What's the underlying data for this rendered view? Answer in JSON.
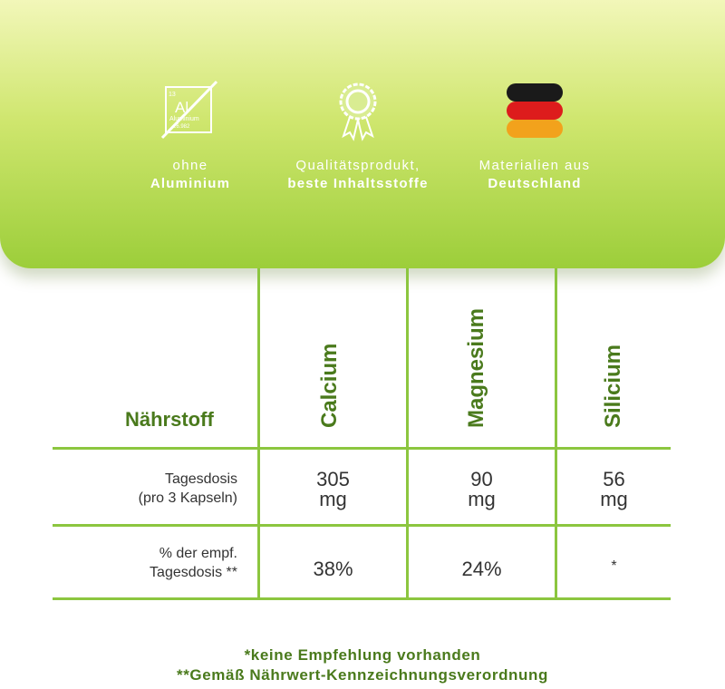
{
  "features": [
    {
      "icon": "aluminium-crossed-icon",
      "line1": "ohne",
      "line2": "Aluminium"
    },
    {
      "icon": "quality-rosette-icon",
      "line1": "Qualitätsprodukt,",
      "line2": "beste Inhaltsstoffe"
    },
    {
      "icon": "germany-flag-icon",
      "line1": "Materialien aus",
      "line2": "Deutschland"
    }
  ],
  "element_tile": {
    "number": "13",
    "symbol": "Al",
    "name": "Aluminium",
    "mass": "26.982"
  },
  "table": {
    "header": "Nährstoff",
    "columns": [
      "Calcium",
      "Magnesium",
      "Silicium"
    ],
    "rows": [
      {
        "label_1": "Tagesdosis",
        "label_2": "(pro 3 Kapseln)",
        "values": [
          [
            "305",
            "mg"
          ],
          [
            "90",
            "mg"
          ],
          [
            "56",
            "mg"
          ]
        ]
      },
      {
        "label_1": "% der empf.",
        "label_2": "Tagesdosis **",
        "values": [
          "38%",
          "24%",
          "*"
        ]
      }
    ]
  },
  "footnotes": [
    "*keine Empfehlung vorhanden",
    "**Gemäß Nährwert-Kennzeichnungsverordnung"
  ],
  "colors": {
    "accent": "#8cc63f",
    "heading": "#4a7a1c",
    "flag": [
      "#1a1a1a",
      "#dd1c1c",
      "#f2a21c"
    ]
  }
}
